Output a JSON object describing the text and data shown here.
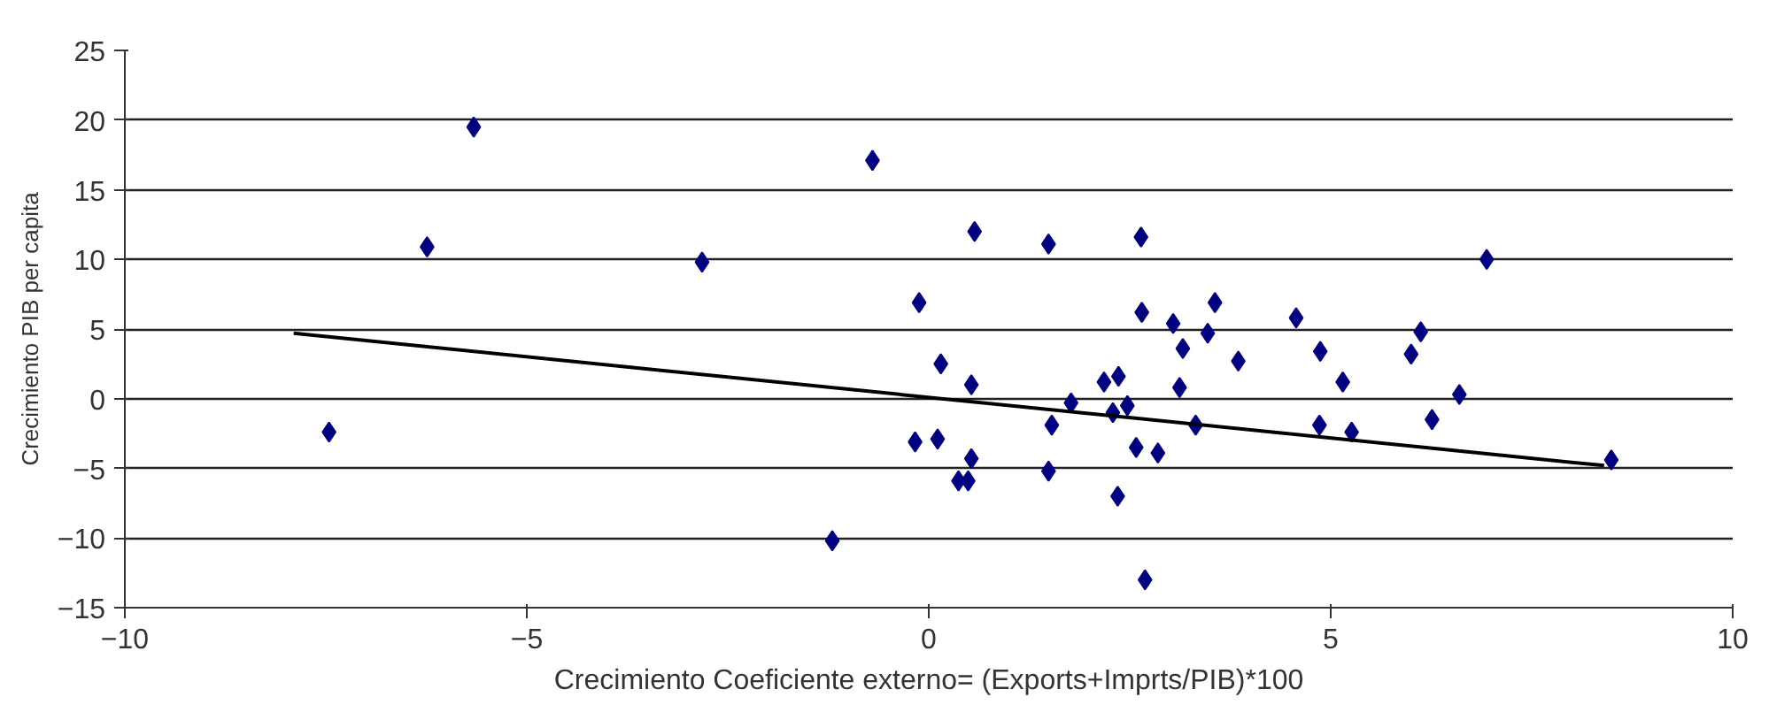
{
  "chart_data": {
    "type": "scatter",
    "xlabel": "Crecimiento Coeficiente externo= (Exports+Imprts/PIB)*100",
    "ylabel": "Crecimiento PIB per capita",
    "xlim": [
      -10,
      10
    ],
    "ylim": [
      -15,
      25
    ],
    "xticks": [
      -10,
      -5,
      0,
      5,
      10
    ],
    "yticks": [
      -15,
      -10,
      -5,
      0,
      5,
      10,
      15,
      20,
      25
    ],
    "grid": "y",
    "series": [
      {
        "marker": "diamond",
        "color": "#000080",
        "x": [
          -5.66,
          -0.7,
          -6.24,
          -2.82,
          -0.12,
          -7.46,
          -0.17,
          -1.2,
          0.15,
          0.11,
          0.57,
          1.49,
          2.64,
          6.94,
          2.65,
          3.56,
          3.04,
          4.57,
          3.47,
          6.12,
          3.16,
          4.87,
          6.0,
          3.85,
          0.53,
          5.15,
          2.18,
          2.36,
          3.12,
          6.6,
          1.77,
          2.29,
          2.47,
          1.53,
          3.32,
          4.86,
          6.26,
          5.26,
          2.58,
          2.85,
          0.53,
          8.49,
          1.49,
          0.37,
          0.49,
          2.35,
          2.69
        ],
        "values": [
          19.5,
          17.1,
          10.9,
          9.8,
          6.9,
          -2.4,
          -3.1,
          -10.2,
          2.5,
          -2.9,
          12.0,
          11.1,
          11.6,
          10.0,
          6.2,
          6.9,
          5.4,
          5.8,
          4.7,
          4.8,
          3.6,
          3.4,
          3.2,
          2.7,
          1.0,
          1.2,
          1.2,
          1.6,
          0.8,
          0.3,
          -0.3,
          -1.0,
          -0.5,
          -1.9,
          -1.9,
          -1.9,
          -1.5,
          -2.4,
          -3.5,
          -3.9,
          -4.3,
          -4.4,
          -5.2,
          -5.9,
          -5.9,
          -7.0,
          -13.0
        ]
      },
      {
        "type": "line",
        "color": "#000000",
        "x": [
          -7.9,
          8.4
        ],
        "values": [
          4.7,
          -4.8
        ]
      }
    ]
  }
}
